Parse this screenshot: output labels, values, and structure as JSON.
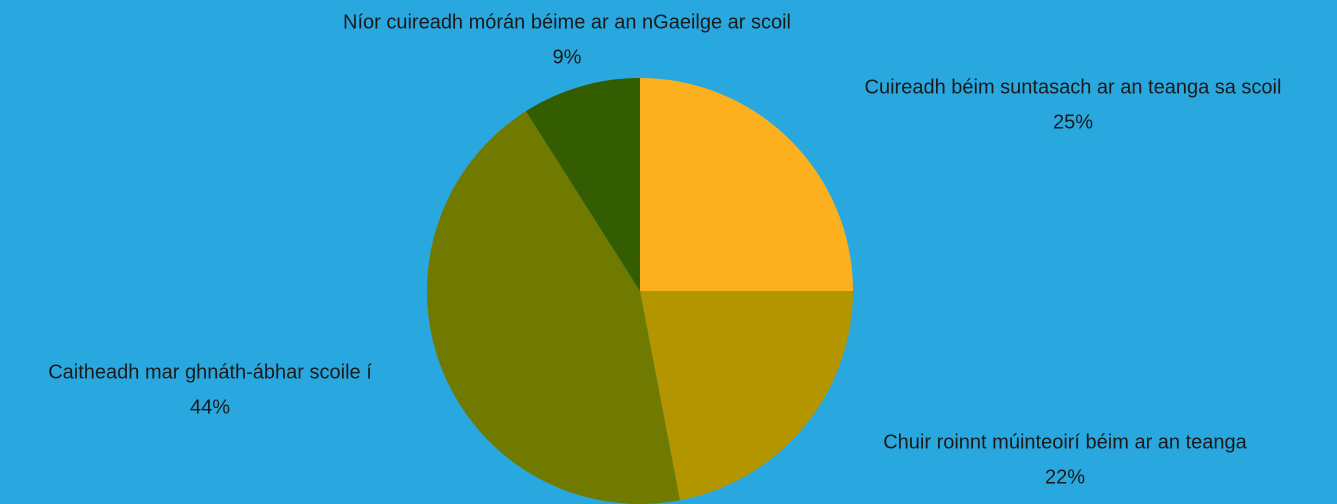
{
  "chart_data": {
    "type": "pie",
    "categories": [
      "Cuireadh béim suntasach ar an teanga sa scoil",
      "Chuir roinnt múinteoirí béim ar an teanga",
      "Caitheadh mar ghnáth-ábhar scoile í",
      "Níor cuireadh mórán béime ar an nGaeilge ar scoil"
    ],
    "values": [
      25,
      22,
      44,
      9
    ],
    "value_labels": [
      "25%",
      "22%",
      "44%",
      "9%"
    ],
    "colors": [
      "#fdb01e",
      "#b39500",
      "#707a00",
      "#345c00"
    ]
  }
}
